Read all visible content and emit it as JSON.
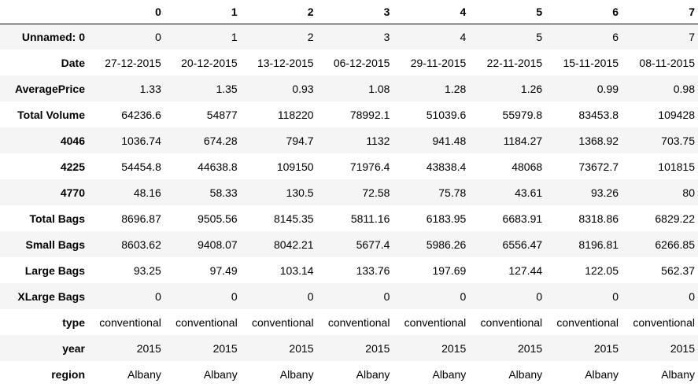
{
  "table": {
    "corner": "",
    "columns": [
      "0",
      "1",
      "2",
      "3",
      "4",
      "5",
      "6",
      "7"
    ],
    "rows": [
      {
        "label": "Unnamed: 0",
        "cells": [
          "0",
          "1",
          "2",
          "3",
          "4",
          "5",
          "6",
          "7"
        ]
      },
      {
        "label": "Date",
        "cells": [
          "27-12-2015",
          "20-12-2015",
          "13-12-2015",
          "06-12-2015",
          "29-11-2015",
          "22-11-2015",
          "15-11-2015",
          "08-11-2015"
        ]
      },
      {
        "label": "AveragePrice",
        "cells": [
          "1.33",
          "1.35",
          "0.93",
          "1.08",
          "1.28",
          "1.26",
          "0.99",
          "0.98"
        ]
      },
      {
        "label": "Total Volume",
        "cells": [
          "64236.6",
          "54877",
          "118220",
          "78992.1",
          "51039.6",
          "55979.8",
          "83453.8",
          "109428"
        ]
      },
      {
        "label": "4046",
        "cells": [
          "1036.74",
          "674.28",
          "794.7",
          "1132",
          "941.48",
          "1184.27",
          "1368.92",
          "703.75"
        ]
      },
      {
        "label": "4225",
        "cells": [
          "54454.8",
          "44638.8",
          "109150",
          "71976.4",
          "43838.4",
          "48068",
          "73672.7",
          "101815"
        ]
      },
      {
        "label": "4770",
        "cells": [
          "48.16",
          "58.33",
          "130.5",
          "72.58",
          "75.78",
          "43.61",
          "93.26",
          "80"
        ]
      },
      {
        "label": "Total Bags",
        "cells": [
          "8696.87",
          "9505.56",
          "8145.35",
          "5811.16",
          "6183.95",
          "6683.91",
          "8318.86",
          "6829.22"
        ]
      },
      {
        "label": "Small Bags",
        "cells": [
          "8603.62",
          "9408.07",
          "8042.21",
          "5677.4",
          "5986.26",
          "6556.47",
          "8196.81",
          "6266.85"
        ]
      },
      {
        "label": "Large Bags",
        "cells": [
          "93.25",
          "97.49",
          "103.14",
          "133.76",
          "197.69",
          "127.44",
          "122.05",
          "562.37"
        ]
      },
      {
        "label": "XLarge Bags",
        "cells": [
          "0",
          "0",
          "0",
          "0",
          "0",
          "0",
          "0",
          "0"
        ]
      },
      {
        "label": "type",
        "cells": [
          "conventional",
          "conventional",
          "conventional",
          "conventional",
          "conventional",
          "conventional",
          "conventional",
          "conventional"
        ]
      },
      {
        "label": "year",
        "cells": [
          "2015",
          "2015",
          "2015",
          "2015",
          "2015",
          "2015",
          "2015",
          "2015"
        ]
      },
      {
        "label": "region",
        "cells": [
          "Albany",
          "Albany",
          "Albany",
          "Albany",
          "Albany",
          "Albany",
          "Albany",
          "Albany"
        ]
      }
    ]
  },
  "colors": {
    "stripe": "#f5f5f5",
    "header_rule": "#000000"
  }
}
